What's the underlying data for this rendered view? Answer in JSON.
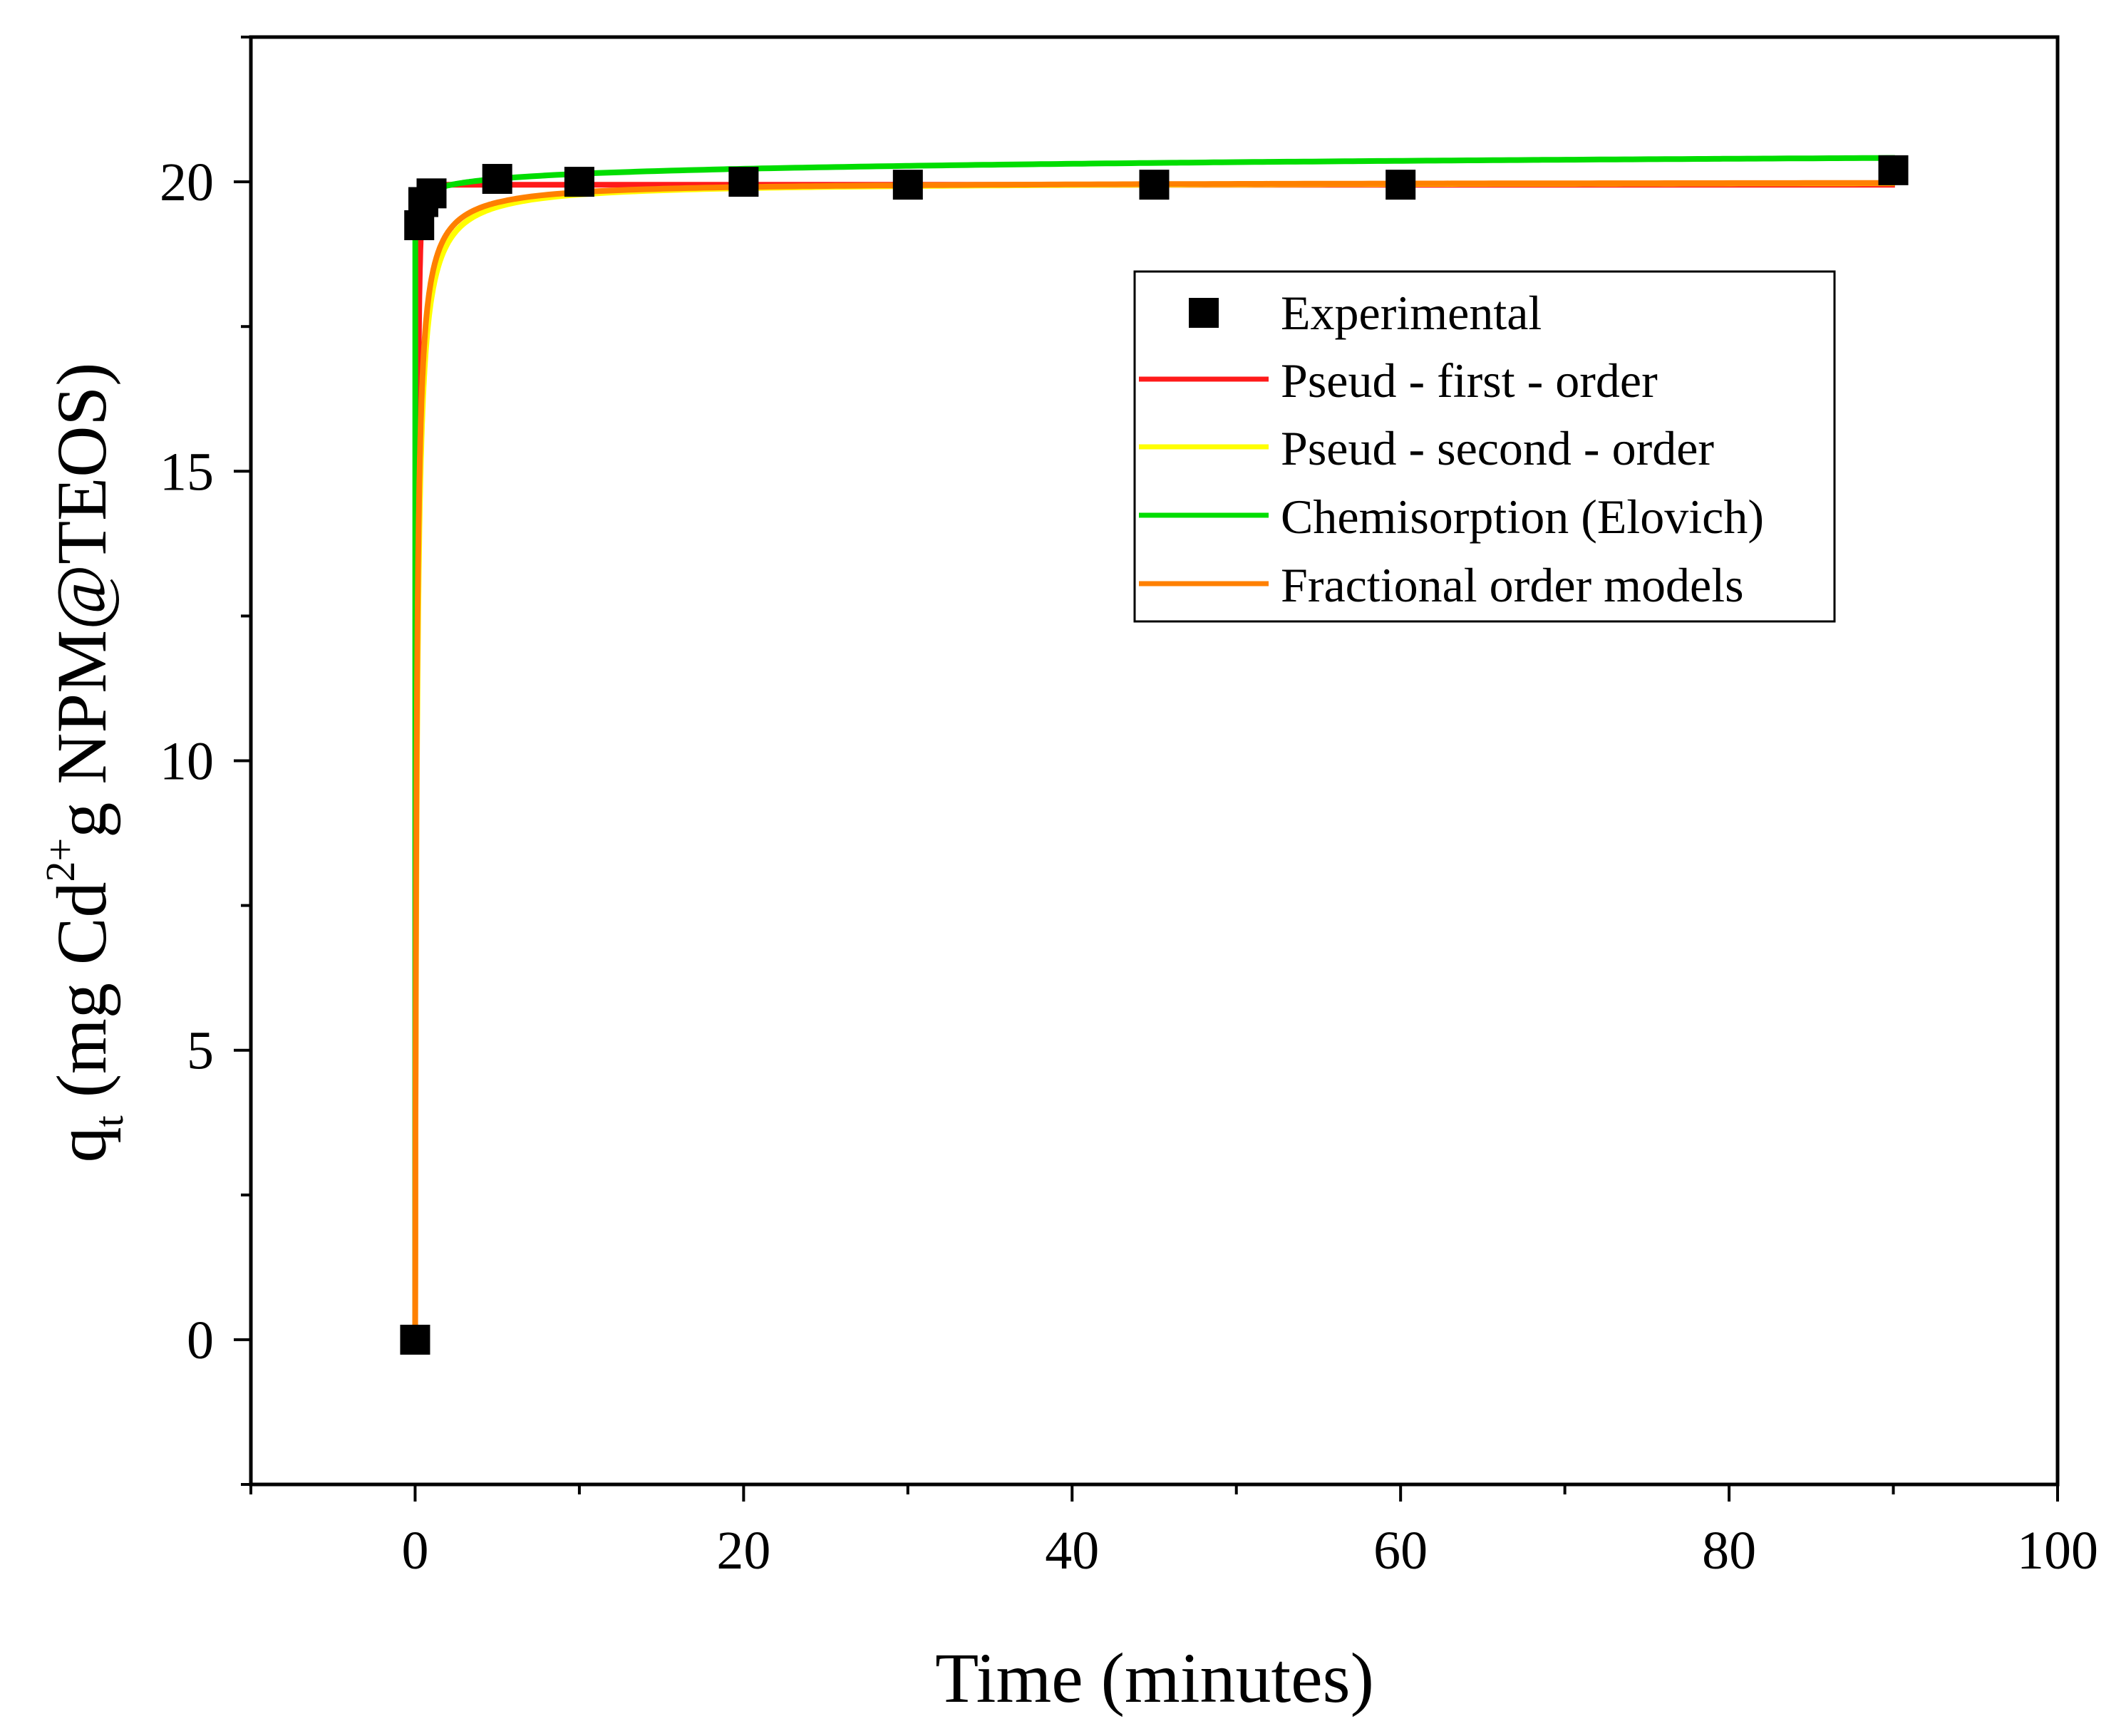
{
  "chart_data": {
    "type": "scatter+line",
    "title": "",
    "xlabel": "Time (minutes)",
    "ylabel": {
      "q": "q",
      "q_sub": "t",
      "pre": " (mg Cd",
      "sup": "2+",
      "post": "g NPM@TEOS)"
    },
    "xlim": [
      -10,
      100
    ],
    "ylim": [
      -2.5,
      22.5
    ],
    "x_ticks": [
      0,
      20,
      40,
      60,
      80,
      100
    ],
    "y_ticks": [
      0,
      5,
      10,
      15,
      20
    ],
    "x_ticks_display": [
      "0",
      "20",
      "40",
      "60",
      "80",
      "100"
    ],
    "y_ticks_display": [
      "0",
      "5",
      "10",
      "15",
      "20"
    ],
    "legend_position": "upper-right",
    "experimental": {
      "name": "Experimental",
      "color": "#000000",
      "x": [
        0,
        0.25,
        0.5,
        1,
        5,
        10,
        20,
        30,
        45,
        60,
        90
      ],
      "y": [
        0,
        19.25,
        19.65,
        19.8,
        20.05,
        20.0,
        20.0,
        19.95,
        19.95,
        19.95,
        20.2
      ]
    },
    "series": [
      {
        "name": "Pseud - first - order",
        "color": "#ff1a1a",
        "model": "pfo",
        "params": {
          "qe": 19.95,
          "k": 9
        }
      },
      {
        "name": "Pseud - second - order",
        "color": "#ffff00",
        "model": "pso",
        "params": {
          "qe": 20.0,
          "k": 0.45
        }
      },
      {
        "name": "Chemisorption (Elovich)",
        "color": "#00dd00",
        "model": "elovich",
        "params": {
          "a": 19.85,
          "b": 0.125
        }
      },
      {
        "name": "Fractional order models",
        "color": "#ff8000",
        "model": "pso",
        "params": {
          "qe": 20.0,
          "k": 0.55
        }
      }
    ]
  }
}
